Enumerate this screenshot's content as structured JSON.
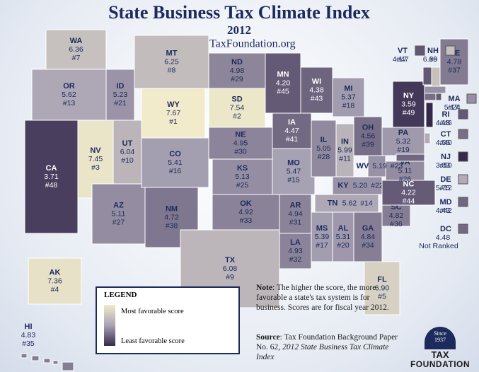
{
  "header": {
    "title": "State Business Tax Climate Index",
    "year": "2012",
    "url": "www.TaxFoundation.org"
  },
  "states": [
    {
      "abbr": "WA",
      "score": 6.36,
      "rank": "#7"
    },
    {
      "abbr": "OR",
      "score": 5.62,
      "rank": "#13"
    },
    {
      "abbr": "CA",
      "score": 3.71,
      "rank": "#48"
    },
    {
      "abbr": "NV",
      "score": 7.45,
      "rank": "#3"
    },
    {
      "abbr": "ID",
      "score": 5.23,
      "rank": "#21"
    },
    {
      "abbr": "MT",
      "score": 6.25,
      "rank": "#8"
    },
    {
      "abbr": "WY",
      "score": 7.67,
      "rank": "#1"
    },
    {
      "abbr": "UT",
      "score": 6.04,
      "rank": "#10"
    },
    {
      "abbr": "AZ",
      "score": 5.11,
      "rank": "#27"
    },
    {
      "abbr": "NM",
      "score": 4.72,
      "rank": "#38"
    },
    {
      "abbr": "CO",
      "score": 5.41,
      "rank": "#16"
    },
    {
      "abbr": "ND",
      "score": 4.98,
      "rank": "#29"
    },
    {
      "abbr": "SD",
      "score": 7.54,
      "rank": "#2"
    },
    {
      "abbr": "NE",
      "score": 4.95,
      "rank": "#30"
    },
    {
      "abbr": "KS",
      "score": 5.13,
      "rank": "#25"
    },
    {
      "abbr": "OK",
      "score": 4.92,
      "rank": "#33"
    },
    {
      "abbr": "TX",
      "score": 6.08,
      "rank": "#9"
    },
    {
      "abbr": "MN",
      "score": {
        "value": 4.2,
        "label": "4.20"
      },
      "rank": "#45"
    },
    {
      "abbr": "IA",
      "score": 4.47,
      "rank": "#41"
    },
    {
      "abbr": "MO",
      "score": 5.47,
      "rank": "#15"
    },
    {
      "abbr": "AR",
      "score": 4.94,
      "rank": "#31"
    },
    {
      "abbr": "LA",
      "score": 4.93,
      "rank": "#32"
    },
    {
      "abbr": "WI",
      "score": 4.38,
      "rank": "#43"
    },
    {
      "abbr": "IL",
      "score": 5.05,
      "rank": "#28"
    },
    {
      "abbr": "MI",
      "score": 5.37,
      "rank": "#18"
    },
    {
      "abbr": "IN",
      "score": 5.99,
      "rank": "#11"
    },
    {
      "abbr": "OH",
      "score": 4.56,
      "rank": "#39"
    },
    {
      "abbr": "KY",
      "score": {
        "value": 5.2,
        "label": "5.20"
      },
      "rank": "#22"
    },
    {
      "abbr": "TN",
      "score": 5.62,
      "rank": "#14"
    },
    {
      "abbr": "MS",
      "score": 5.39,
      "rank": "#17"
    },
    {
      "abbr": "AL",
      "score": 5.31,
      "rank": "#20"
    },
    {
      "abbr": "GA",
      "score": 4.84,
      "rank": "#34"
    },
    {
      "abbr": "FL",
      "score": {
        "value": 6.9,
        "label": "6.90"
      },
      "rank": "#5"
    },
    {
      "abbr": "SC",
      "score": 4.82,
      "rank": "#36"
    },
    {
      "abbr": "NC",
      "score": 4.22,
      "rank": "#44"
    },
    {
      "abbr": "VA",
      "score": 5.11,
      "rank": "#26"
    },
    {
      "abbr": "WV",
      "score": 5.19,
      "rank": "#23"
    },
    {
      "abbr": "PA",
      "score": 5.32,
      "rank": "#19"
    },
    {
      "abbr": "NY",
      "score": 3.59,
      "rank": "#49"
    },
    {
      "abbr": "ME",
      "score": 4.78,
      "rank": "#37"
    },
    {
      "abbr": "VT",
      "score": 4.17,
      "rank": "#47"
    },
    {
      "abbr": "NH",
      "score": 6.39,
      "rank": "#6"
    },
    {
      "abbr": "MA",
      "score": 5.17,
      "rank": "#24"
    },
    {
      "abbr": "RI",
      "score": 4.18,
      "rank": "#46"
    },
    {
      "abbr": "CT",
      "score": 4.56,
      "rank": "#40"
    },
    {
      "abbr": "NJ",
      "score": 3.33,
      "rank": "#50"
    },
    {
      "abbr": "DE",
      "score": 5.75,
      "rank": "#12"
    },
    {
      "abbr": "MD",
      "score": 4.43,
      "rank": "#42"
    },
    {
      "abbr": "DC",
      "score": 4.48,
      "rank": "Not Ranked"
    },
    {
      "abbr": "AK",
      "score": 7.36,
      "rank": "#4"
    },
    {
      "abbr": "HI",
      "score": 4.83,
      "rank": "#35"
    }
  ],
  "legend": {
    "title": "LEGEND",
    "high": "Most favorable score",
    "low": "Least favorable score"
  },
  "note": {
    "label": "Note",
    "text": ": The higher the score, the more favorable a state's tax system is for business. Scores are for fiscal year 2012."
  },
  "source": {
    "label": "Source",
    "text": ": Tax Foundation Background Paper No. 62, ",
    "title": "2012 State Business Tax Climate Index"
  },
  "logo": {
    "since": "Since",
    "year": "1937",
    "tax": "TAX",
    "foundation": "FOUNDATION"
  }
}
